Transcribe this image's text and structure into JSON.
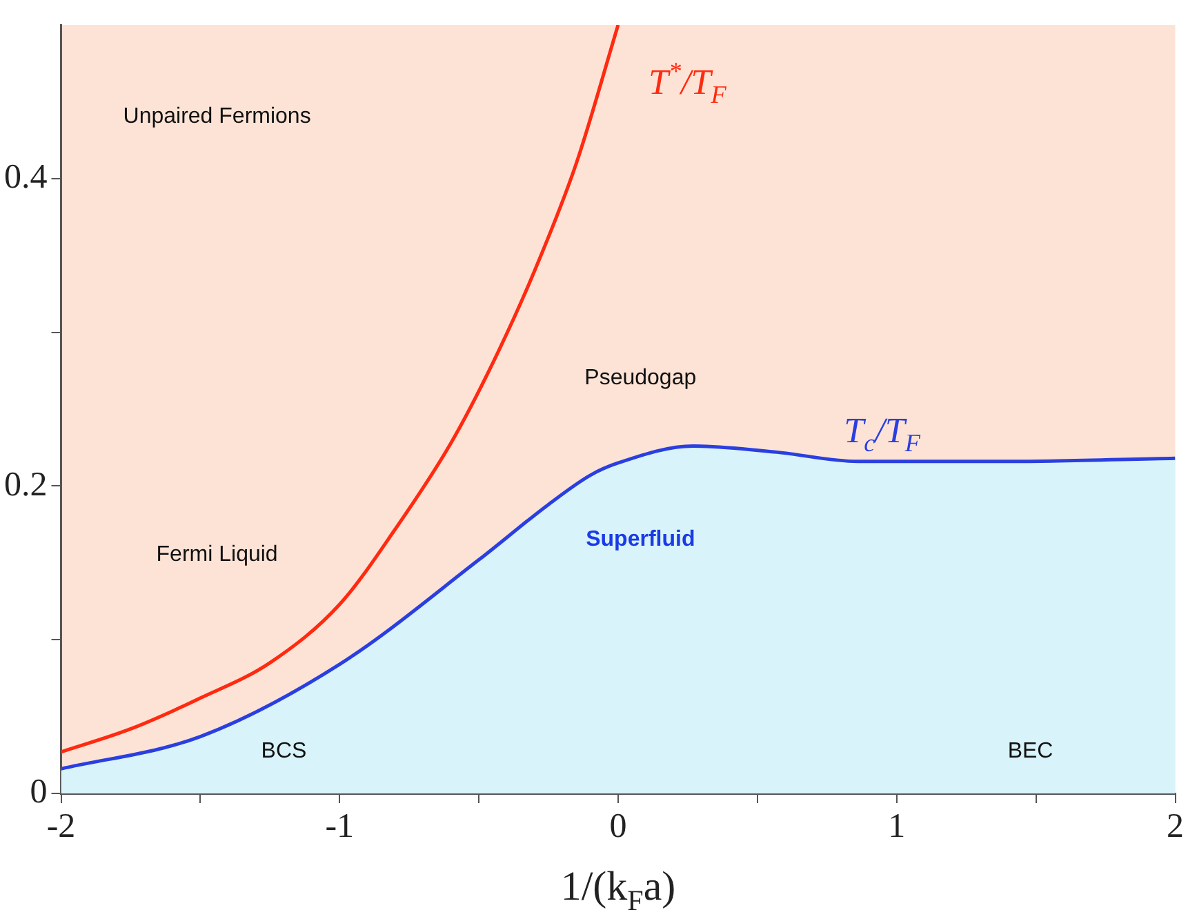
{
  "chart_data": {
    "type": "line",
    "xlabel": "1/(k$_{F}$a)",
    "xlim": [
      -2,
      2
    ],
    "ylim": [
      0,
      0.5
    ],
    "xticks": [
      -2,
      {
        "value": -1.5,
        "label": null
      },
      -1,
      {
        "value": -0.5,
        "label": null
      },
      0,
      {
        "value": 0.5,
        "label": null
      },
      1,
      {
        "value": 1.5,
        "label": null
      },
      2
    ],
    "yticks": [
      0,
      {
        "value": 0.1,
        "label": null
      },
      0.2,
      {
        "value": 0.3,
        "label": null
      },
      0.4
    ],
    "grid": false,
    "legend": false,
    "marker": "none",
    "line_style": "solid",
    "series": [
      {
        "name": "T$^{*}$/T$_{F}$",
        "color": "#ff2a10",
        "x": [
          -2,
          -1.75,
          -1.5,
          -1.25,
          -1,
          -0.8,
          -0.6,
          -0.45,
          -0.3,
          -0.15,
          0
        ],
        "values": [
          0.027,
          0.042,
          0.062,
          0.085,
          0.123,
          0.172,
          0.228,
          0.28,
          0.34,
          0.41,
          0.5
        ]
      },
      {
        "name": "T$_{c}$/T$_{F}$",
        "type": "area",
        "color": "#2a3fe0",
        "x": [
          -2,
          -1.5,
          -1,
          -0.5,
          -0.25,
          -0.1,
          0,
          0.27,
          0.57,
          0.86,
          1.41,
          2
        ],
        "values": [
          0.016,
          0.037,
          0.084,
          0.152,
          0.188,
          0.207,
          0.215,
          0.226,
          0.222,
          0.216,
          0.216,
          0.218
        ]
      }
    ],
    "annotations": [
      "Unpaired Fermions",
      "Pseudogap",
      "Fermi Liquid",
      "Superfluid",
      "BCS",
      "BEC"
    ]
  }
}
